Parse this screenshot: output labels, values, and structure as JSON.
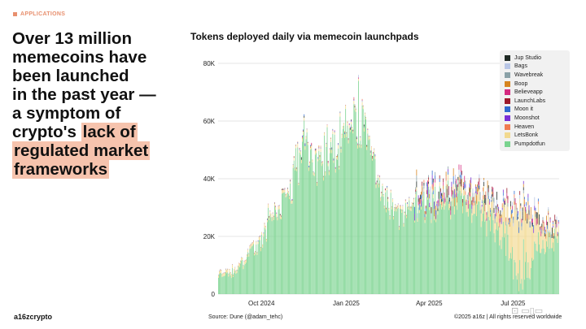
{
  "section": {
    "label": "APPLICATIONS"
  },
  "headline": {
    "line1": "Over 13 million",
    "line2": "memecoins have",
    "line3": "been launched",
    "line4": "in the past year —",
    "line5a": "a symptom of",
    "line6a": "crypto's ",
    "line6b": "lack of",
    "line7": "regulated market",
    "line8": "frameworks"
  },
  "chart_data": {
    "type": "bar",
    "stacked": true,
    "title": "Tokens deployed daily via memecoin launchpads",
    "xlabel": "",
    "ylabel": "",
    "ylim": [
      0,
      80000
    ],
    "yticks": [
      0,
      20000,
      40000,
      60000,
      80000
    ],
    "ytick_labels": [
      "0",
      "20K",
      "40K",
      "60K",
      "80K"
    ],
    "x_range": [
      "2024-08-15",
      "2025-08-20"
    ],
    "xticks": [
      "2024-10-01",
      "2025-01-01",
      "2025-04-01",
      "2025-07-01"
    ],
    "xtick_labels": [
      "Oct 2024",
      "Jan 2025",
      "Apr 2025",
      "Jul 2025"
    ],
    "grid": true,
    "legend_position": "top-right",
    "series": [
      {
        "name": "Jup Studio",
        "color": "#1f2a24"
      },
      {
        "name": "Bags",
        "color": "#b8c6e6"
      },
      {
        "name": "Wavebreak",
        "color": "#8aa1a7"
      },
      {
        "name": "Boop",
        "color": "#d6841f"
      },
      {
        "name": "Believeapp",
        "color": "#d4297f"
      },
      {
        "name": "LaunchLabs",
        "color": "#9c1a2c"
      },
      {
        "name": "Moon it",
        "color": "#2f6ad0"
      },
      {
        "name": "Moonshot",
        "color": "#7a2ed6"
      },
      {
        "name": "Heaven",
        "color": "#f07a50"
      },
      {
        "name": "LetsBonk",
        "color": "#f2d98f"
      },
      {
        "name": "Pumpdotfun",
        "color": "#79d38e"
      }
    ],
    "total_trend": [
      {
        "date": "2024-08-15",
        "value": 8000
      },
      {
        "date": "2024-09-01",
        "value": 7500
      },
      {
        "date": "2024-09-15",
        "value": 14000
      },
      {
        "date": "2024-10-01",
        "value": 19000
      },
      {
        "date": "2024-10-15",
        "value": 29000
      },
      {
        "date": "2024-11-01",
        "value": 38000
      },
      {
        "date": "2024-11-15",
        "value": 52000
      },
      {
        "date": "2024-12-01",
        "value": 47000
      },
      {
        "date": "2024-12-15",
        "value": 52000
      },
      {
        "date": "2025-01-01",
        "value": 56000
      },
      {
        "date": "2025-01-15",
        "value": 63000
      },
      {
        "date": "2025-02-01",
        "value": 42000
      },
      {
        "date": "2025-02-15",
        "value": 32000
      },
      {
        "date": "2025-03-01",
        "value": 27000
      },
      {
        "date": "2025-03-15",
        "value": 31000
      },
      {
        "date": "2025-04-01",
        "value": 36000
      },
      {
        "date": "2025-04-15",
        "value": 38000
      },
      {
        "date": "2025-05-01",
        "value": 39000
      },
      {
        "date": "2025-05-15",
        "value": 37000
      },
      {
        "date": "2025-06-01",
        "value": 34000
      },
      {
        "date": "2025-06-15",
        "value": 32000
      },
      {
        "date": "2025-07-01",
        "value": 31000
      },
      {
        "date": "2025-07-15",
        "value": 30000
      },
      {
        "date": "2025-08-01",
        "value": 28000
      },
      {
        "date": "2025-08-20",
        "value": 22000
      }
    ],
    "letsbonk_trend": [
      {
        "date": "2025-04-01",
        "value": 1000
      },
      {
        "date": "2025-05-15",
        "value": 3000
      },
      {
        "date": "2025-06-15",
        "value": 6000
      },
      {
        "date": "2025-07-01",
        "value": 17000
      },
      {
        "date": "2025-07-10",
        "value": 24000
      },
      {
        "date": "2025-07-20",
        "value": 14000
      },
      {
        "date": "2025-08-01",
        "value": 6000
      },
      {
        "date": "2025-08-20",
        "value": 3000
      }
    ]
  },
  "footer": {
    "logo": "a16zcrypto",
    "source": "Source: Dune (@adam_tehc)",
    "copyright": "©2025 a16z | All rights reserved worldwide"
  }
}
